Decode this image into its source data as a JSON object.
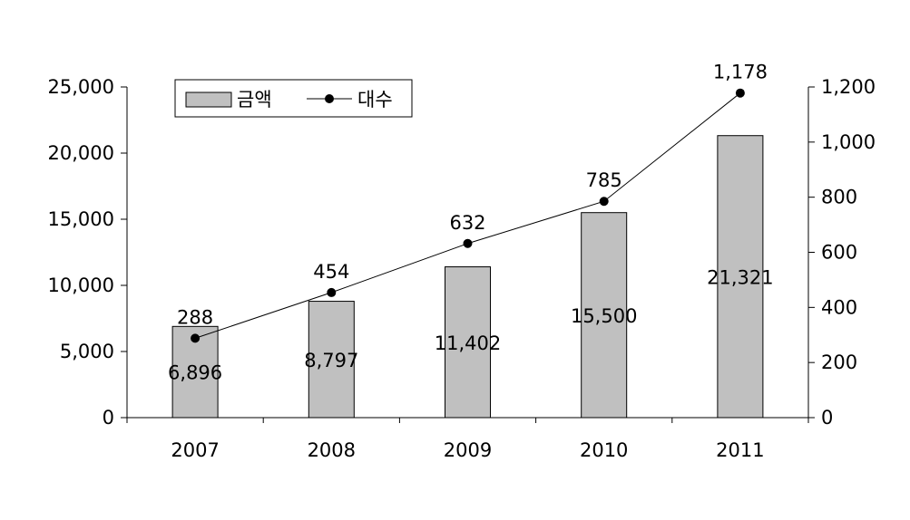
{
  "chart_data": {
    "type": "bar",
    "categories": [
      "2007",
      "2008",
      "2009",
      "2010",
      "2011"
    ],
    "series": [
      {
        "name": "금액",
        "type": "bar",
        "axis": "left",
        "values": [
          6896,
          8797,
          11402,
          15500,
          21321
        ],
        "labels": [
          "6,896",
          "8,797",
          "11,402",
          "15,500",
          "21,321"
        ]
      },
      {
        "name": "대수",
        "type": "line",
        "axis": "right",
        "values": [
          288,
          454,
          632,
          785,
          1178
        ],
        "labels": [
          "288",
          "454",
          "632",
          "785",
          "1,178"
        ]
      }
    ],
    "y_left": {
      "ylim": [
        0,
        25000
      ],
      "ticks": [
        0,
        5000,
        10000,
        15000,
        20000,
        25000
      ],
      "tick_labels": [
        "0",
        "5,000",
        "10,000",
        "15,000",
        "20,000",
        "25,000"
      ]
    },
    "y_right": {
      "ylim": [
        0,
        1200
      ],
      "ticks": [
        0,
        200,
        400,
        600,
        800,
        1000,
        1200
      ],
      "tick_labels": [
        "0",
        "200",
        "400",
        "600",
        "800",
        "1,000",
        "1,200"
      ]
    },
    "grid": false,
    "legend": "top-left",
    "colors": {
      "bar_fill": "#c0c0c0",
      "bar_stroke": "#000000",
      "line": "#000000",
      "marker": "#000000"
    }
  }
}
